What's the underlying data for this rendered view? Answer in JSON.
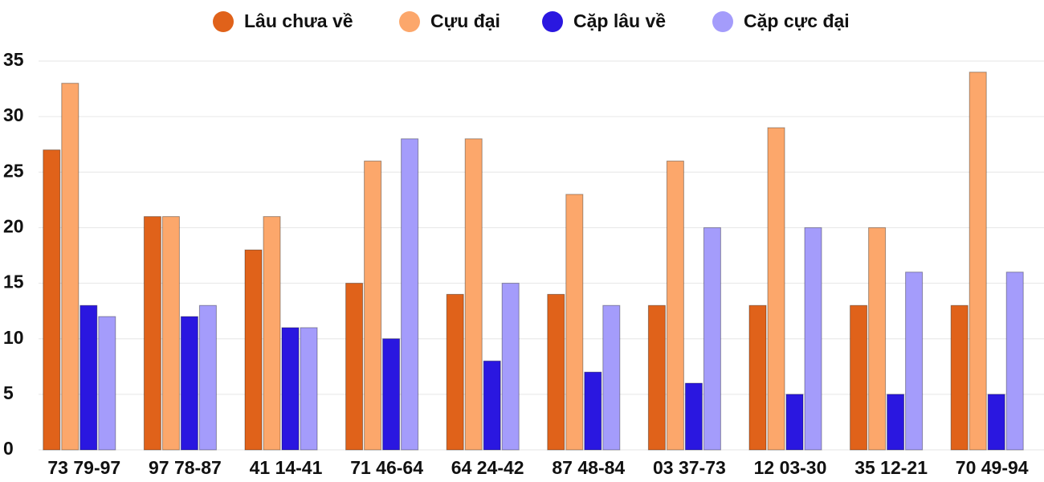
{
  "chart_data": {
    "type": "bar",
    "categories": [
      "73 79-97",
      "97 78-87",
      "41 14-41",
      "71 46-64",
      "64 24-42",
      "87 48-84",
      "03 37-73",
      "12 03-30",
      "35 12-21",
      "70 49-94"
    ],
    "series": [
      {
        "name": "Lâu chưa về",
        "color": "#e0621a",
        "values": [
          27,
          21,
          18,
          15,
          14,
          14,
          13,
          13,
          13,
          13
        ]
      },
      {
        "name": "Cựu đại",
        "color": "#fca76b",
        "values": [
          33,
          21,
          21,
          26,
          28,
          23,
          26,
          29,
          20,
          34
        ]
      },
      {
        "name": "Cặp lâu về",
        "color": "#2a17e0",
        "values": [
          13,
          12,
          11,
          10,
          8,
          7,
          6,
          5,
          5,
          5
        ]
      },
      {
        "name": "Cặp cực đại",
        "color": "#a49cfb",
        "values": [
          12,
          13,
          11,
          28,
          15,
          13,
          20,
          20,
          16,
          16
        ]
      }
    ],
    "ylim": [
      0,
      35
    ],
    "yticks": [
      0,
      5,
      10,
      15,
      20,
      25,
      30,
      35
    ],
    "grid": true,
    "legend": "top"
  }
}
